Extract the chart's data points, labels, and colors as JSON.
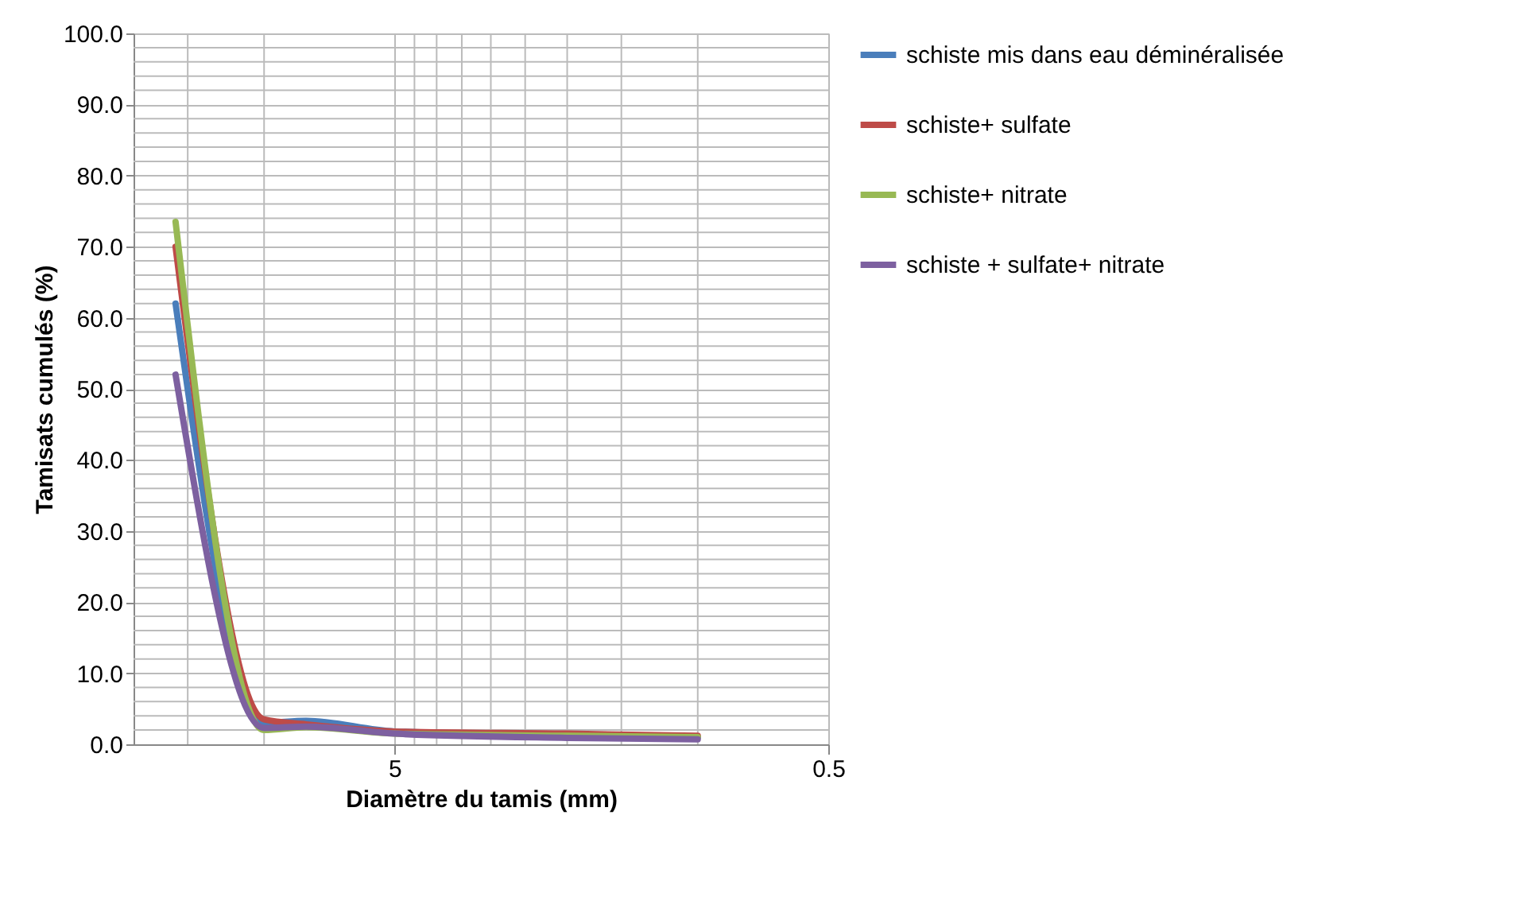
{
  "chart_data": {
    "type": "line",
    "xlabel": "Diamètre du tamis (mm)",
    "ylabel": "Tamisats cumulés (%)",
    "x": [
      16,
      10,
      8,
      5,
      2,
      1
    ],
    "series": [
      {
        "name": "schiste mis dans eau déminéralisée",
        "color": "#4a7ebb",
        "values": [
          62,
          3.0,
          3.3,
          1.8,
          1.3,
          1.0
        ]
      },
      {
        "name": "schiste+ sulfate",
        "color": "#be4b48",
        "values": [
          70,
          3.5,
          2.8,
          1.8,
          1.5,
          1.2
        ]
      },
      {
        "name": "schiste+ nitrate",
        "color": "#98b954",
        "values": [
          73.5,
          2.0,
          2.4,
          1.5,
          1.2,
          1.0
        ]
      },
      {
        "name": "schiste + sulfate+ nitrate",
        "color": "#7d60a0",
        "values": [
          52,
          2.3,
          2.5,
          1.5,
          0.9,
          0.7
        ]
      }
    ],
    "log": "x",
    "xlim": [
      20,
      0.5
    ],
    "xticks": [
      {
        "value": 15,
        "label": null
      },
      {
        "value": 10,
        "label": null
      },
      5,
      {
        "value": 4.5,
        "label": null
      },
      {
        "value": 4,
        "label": null
      },
      {
        "value": 3.5,
        "label": null
      },
      {
        "value": 3,
        "label": null
      },
      {
        "value": 2.5,
        "label": null
      },
      {
        "value": 2,
        "label": null
      },
      {
        "value": 1.5,
        "label": null
      },
      {
        "value": 1,
        "label": null
      },
      0.5
    ],
    "ylim": [
      0,
      100
    ],
    "yticks": [
      {
        "value": 0,
        "label": "0.0"
      },
      {
        "value": 2,
        "label": null
      },
      {
        "value": 4,
        "label": null
      },
      {
        "value": 6,
        "label": null
      },
      {
        "value": 8,
        "label": null
      },
      {
        "value": 10,
        "label": "10.0"
      },
      {
        "value": 12,
        "label": null
      },
      {
        "value": 14,
        "label": null
      },
      {
        "value": 16,
        "label": null
      },
      {
        "value": 18,
        "label": null
      },
      {
        "value": 20,
        "label": "20.0"
      },
      {
        "value": 22,
        "label": null
      },
      {
        "value": 24,
        "label": null
      },
      {
        "value": 26,
        "label": null
      },
      {
        "value": 28,
        "label": null
      },
      {
        "value": 30,
        "label": "30.0"
      },
      {
        "value": 32,
        "label": null
      },
      {
        "value": 34,
        "label": null
      },
      {
        "value": 36,
        "label": null
      },
      {
        "value": 38,
        "label": null
      },
      {
        "value": 40,
        "label": "40.0"
      },
      {
        "value": 42,
        "label": null
      },
      {
        "value": 44,
        "label": null
      },
      {
        "value": 46,
        "label": null
      },
      {
        "value": 48,
        "label": null
      },
      {
        "value": 50,
        "label": "50.0"
      },
      {
        "value": 52,
        "label": null
      },
      {
        "value": 54,
        "label": null
      },
      {
        "value": 56,
        "label": null
      },
      {
        "value": 58,
        "label": null
      },
      {
        "value": 60,
        "label": "60.0"
      },
      {
        "value": 62,
        "label": null
      },
      {
        "value": 64,
        "label": null
      },
      {
        "value": 66,
        "label": null
      },
      {
        "value": 68,
        "label": null
      },
      {
        "value": 70,
        "label": "70.0"
      },
      {
        "value": 72,
        "label": null
      },
      {
        "value": 74,
        "label": null
      },
      {
        "value": 76,
        "label": null
      },
      {
        "value": 78,
        "label": null
      },
      {
        "value": 80,
        "label": "80.0"
      },
      {
        "value": 82,
        "label": null
      },
      {
        "value": 84,
        "label": null
      },
      {
        "value": 86,
        "label": null
      },
      {
        "value": 88,
        "label": null
      },
      {
        "value": 90,
        "label": "90.0"
      },
      {
        "value": 92,
        "label": null
      },
      {
        "value": 94,
        "label": null
      },
      {
        "value": 96,
        "label": null
      },
      {
        "value": 98,
        "label": null
      },
      {
        "value": 100,
        "label": "100.0"
      }
    ],
    "grid": true,
    "legend": "right",
    "marker": "none",
    "line_style": "solid"
  }
}
